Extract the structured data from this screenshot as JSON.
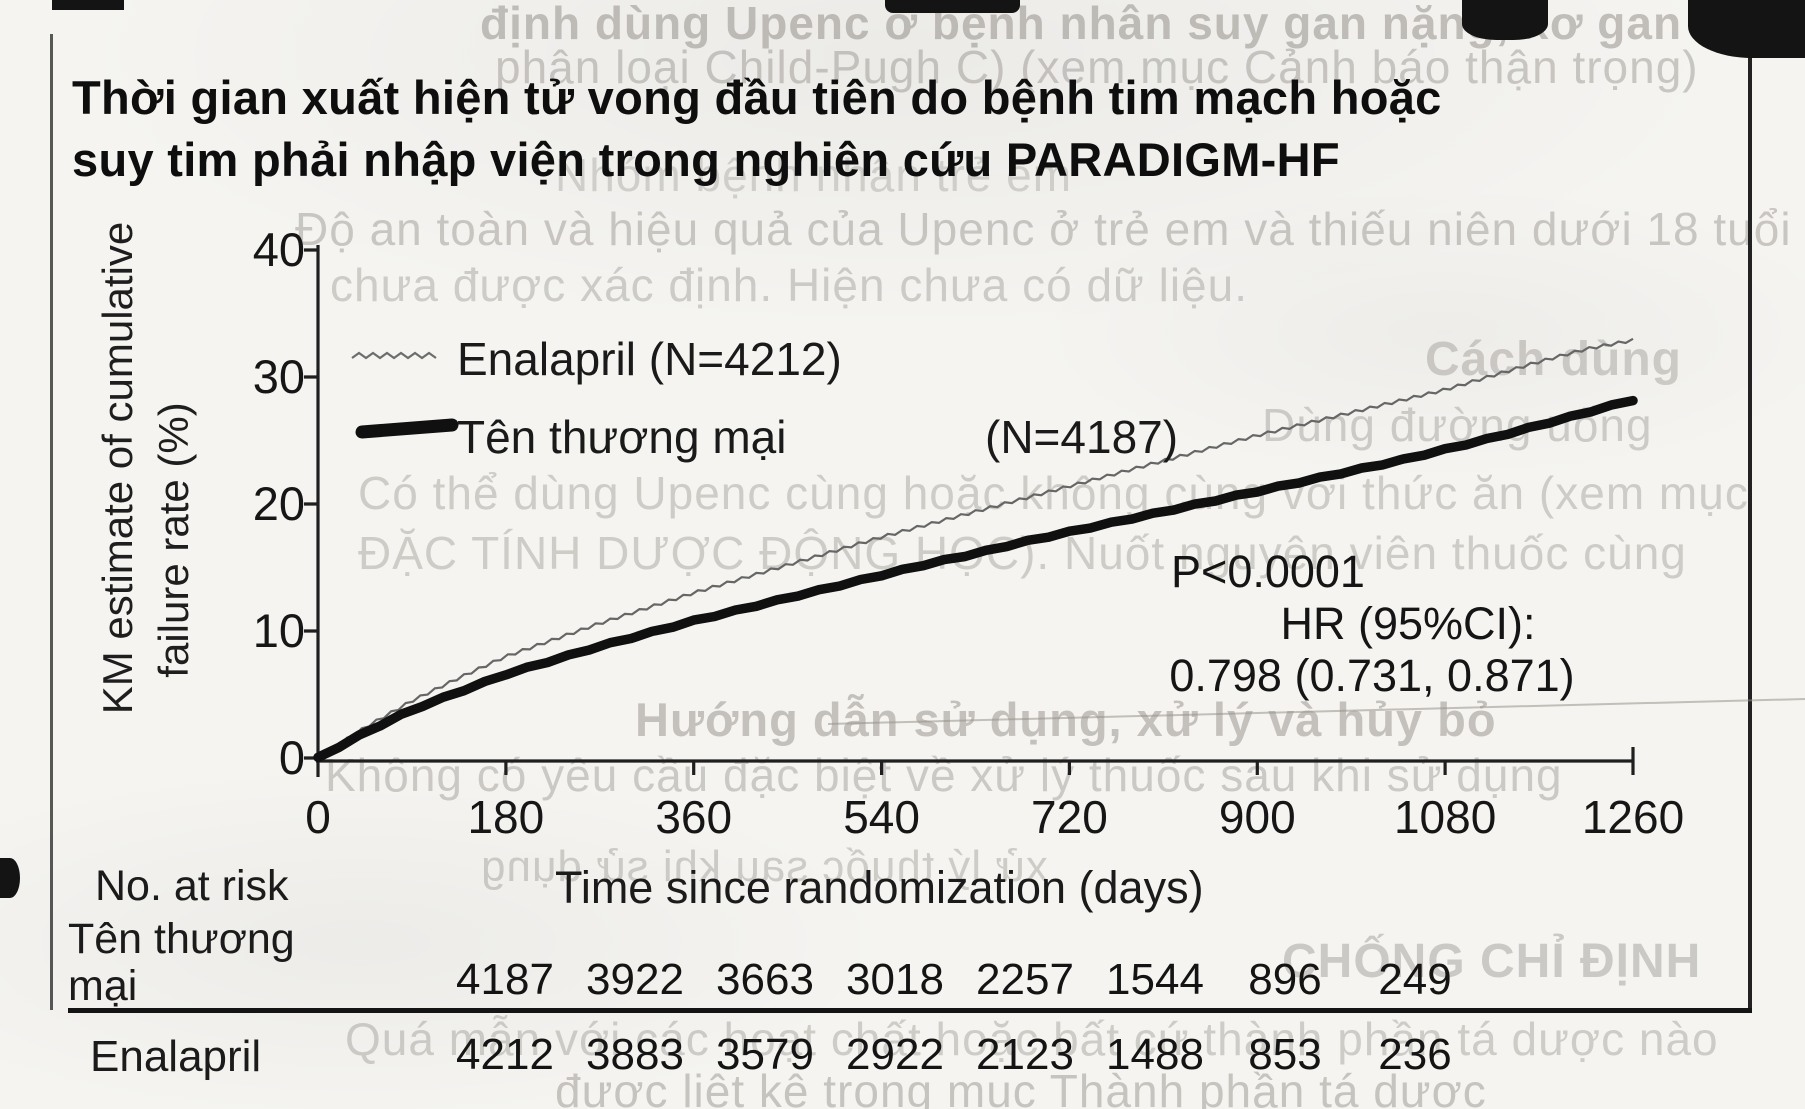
{
  "title": {
    "line1": "Thời gian xuất hiện tử vong đầu tiên do bệnh tim mạch hoặc",
    "line2": "suy tim phải nhập viện trong nghiên cứu PARADIGM-HF"
  },
  "axis": {
    "ylabel_line1": "KM estimate of cumulative",
    "ylabel_line2": "failure rate (%)",
    "xlabel": "Time since randomization (days)"
  },
  "legend": {
    "enalapril": "Enalapril (N=4212)",
    "ttm": "Tên thương mại",
    "ttm_n": "(N=4187)"
  },
  "annotation": {
    "p": "P<0.0001",
    "hr_label": "HR (95%CI):",
    "hr_value": "0.798 (0.731, 0.871)"
  },
  "risk_table": {
    "header": "No. at risk",
    "rows": [
      {
        "label_line1": "Tên thương",
        "label_line2": "mại",
        "values": [
          "4187",
          "3922",
          "3663",
          "3018",
          "2257",
          "1544",
          "896",
          "249"
        ]
      },
      {
        "label_line1": "Enalapril",
        "label_line2": "",
        "values": [
          "4212",
          "3883",
          "3579",
          "2922",
          "2123",
          "1488",
          "853",
          "236"
        ]
      }
    ]
  },
  "chart_data": {
    "type": "line",
    "title": "Thời gian xuất hiện tử vong đầu tiên do bệnh tim mạch hoặc suy tim phải nhập viện trong nghiên cứu PARADIGM-HF",
    "xlabel": "Time since randomization (days)",
    "ylabel": "KM estimate of cumulative failure rate (%)",
    "xlim": [
      0,
      1260
    ],
    "ylim": [
      0,
      40
    ],
    "x_ticks": [
      0,
      180,
      360,
      540,
      720,
      900,
      1080,
      1260
    ],
    "y_ticks": [
      0,
      10,
      20,
      30,
      40
    ],
    "grid": false,
    "legend_position": "upper-left",
    "annotations": [
      "P<0.0001",
      "HR (95%CI):",
      "0.798 (0.731, 0.871)"
    ],
    "x": [
      0,
      45,
      90,
      135,
      180,
      225,
      270,
      315,
      360,
      405,
      450,
      495,
      540,
      585,
      630,
      675,
      720,
      765,
      810,
      855,
      900,
      945,
      990,
      1035,
      1080,
      1125,
      1170,
      1215,
      1260
    ],
    "series": [
      {
        "name": "Enalapril (N=4212)",
        "style": "thin-gray",
        "values": [
          0,
          2.4,
          4.5,
          6.3,
          8.0,
          9.3,
          10.6,
          11.8,
          13.0,
          14.1,
          15.2,
          16.3,
          17.4,
          18.4,
          19.4,
          20.4,
          21.4,
          22.4,
          23.4,
          24.4,
          25.4,
          26.3,
          27.2,
          28.1,
          29.0,
          30.1,
          31.2,
          32.2,
          32.9
        ]
      },
      {
        "name": "Tên thương mại (N=4187)",
        "style": "thick-black",
        "values": [
          0,
          2.0,
          3.8,
          5.2,
          6.6,
          7.7,
          8.8,
          9.8,
          10.8,
          11.7,
          12.6,
          13.5,
          14.4,
          15.3,
          16.1,
          17.0,
          17.8,
          18.6,
          19.4,
          20.2,
          21.0,
          21.8,
          22.6,
          23.4,
          24.3,
          25.2,
          26.2,
          27.2,
          28.2
        ]
      }
    ],
    "risk_table": {
      "header": "No. at risk",
      "times": [
        0,
        180,
        360,
        540,
        720,
        900,
        1080,
        1260
      ],
      "rows": [
        {
          "label": "Tên thương mại",
          "values": [
            4187,
            3922,
            3663,
            3018,
            2257,
            1544,
            896,
            249
          ]
        },
        {
          "label": "Enalapril",
          "values": [
            4212,
            3883,
            3579,
            2922,
            2123,
            1488,
            853,
            236
          ]
        }
      ]
    }
  },
  "colors": {
    "curve_enalapril": "#666666",
    "curve_ttm": "#101010",
    "axis": "#1f1f1f",
    "paper": "#f5f4f1",
    "bleed_text": "#76716a"
  },
  "bleed_text": [
    {
      "text": "định dùng Upenc ở bệnh nhân suy gan nặng, xơ gan mật hoặc ứ mật",
      "mirrored": false
    },
    {
      "text": "phân loại Child-Pugh C) (xem mục Cảnh báo thận trọng)",
      "mirrored": false
    },
    {
      "text": "Nhóm bệnh nhân trẻ em",
      "mirrored": false
    },
    {
      "text": "Độ an toàn và hiệu quả của Upenc ở trẻ em và thiếu niên dưới 18 tuổi",
      "mirrored": false
    },
    {
      "text": "chưa được xác định. Hiện chưa có dữ liệu.",
      "mirrored": false
    },
    {
      "text": "Cách dùng",
      "mirrored": false
    },
    {
      "text": "Dùng đường uống",
      "mirrored": false
    },
    {
      "text": "Có thể dùng Upenc cùng hoặc không cùng với thức ăn (xem mục",
      "mirrored": false
    },
    {
      "text": "ĐẶC TÍNH DƯỢC ĐỘNG HỌC). Nuốt nguyên viên thuốc cùng",
      "mirrored": false
    },
    {
      "text": "Hướng dẫn sử dụng, xử lý và hủy bỏ",
      "mirrored": false
    },
    {
      "text": "Không có yêu cầu đặc biệt về xử lý thuốc sau khi sử dụng",
      "mirrored": false
    },
    {
      "text": "xử lý thuốc sau khi sử dụng",
      "mirrored": true
    },
    {
      "text": "CHỐNG CHỈ ĐỊNH",
      "mirrored": false
    },
    {
      "text": "Quá mẫn với các hoạt chất hoặc bất cứ thành phần tá dược nào",
      "mirrored": false
    },
    {
      "text": "được liệt kê trong mục Thành phần tá dược",
      "mirrored": false
    }
  ]
}
